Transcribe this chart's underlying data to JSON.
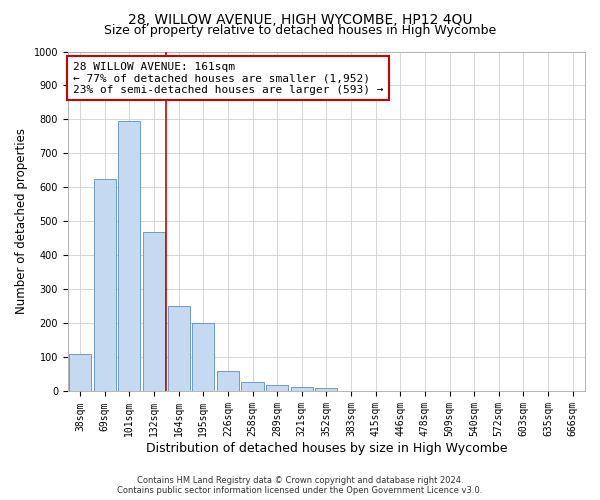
{
  "title": "28, WILLOW AVENUE, HIGH WYCOMBE, HP12 4QU",
  "subtitle": "Size of property relative to detached houses in High Wycombe",
  "xlabel": "Distribution of detached houses by size in High Wycombe",
  "ylabel": "Number of detached properties",
  "footer_line1": "Contains HM Land Registry data © Crown copyright and database right 2024.",
  "footer_line2": "Contains public sector information licensed under the Open Government Licence v3.0.",
  "bar_labels": [
    "38sqm",
    "69sqm",
    "101sqm",
    "132sqm",
    "164sqm",
    "195sqm",
    "226sqm",
    "258sqm",
    "289sqm",
    "321sqm",
    "352sqm",
    "383sqm",
    "415sqm",
    "446sqm",
    "478sqm",
    "509sqm",
    "540sqm",
    "572sqm",
    "603sqm",
    "635sqm",
    "666sqm"
  ],
  "bar_values": [
    110,
    625,
    795,
    470,
    250,
    200,
    60,
    28,
    18,
    13,
    10,
    0,
    0,
    0,
    0,
    0,
    0,
    0,
    0,
    0,
    0
  ],
  "bar_color": "#c5d9f0",
  "bar_edgecolor": "#5a8fc0",
  "vline_color": "#cc0000",
  "annotation_line1": "28 WILLOW AVENUE: 161sqm",
  "annotation_line2": "← 77% of detached houses are smaller (1,952)",
  "annotation_line3": "23% of semi-detached houses are larger (593) →",
  "annotation_box_color": "#ffffff",
  "annotation_box_edgecolor": "#cc0000",
  "ylim": [
    0,
    1000
  ],
  "yticks": [
    0,
    100,
    200,
    300,
    400,
    500,
    600,
    700,
    800,
    900,
    1000
  ],
  "grid_color": "#d0d0d0",
  "background_color": "#ffffff",
  "title_fontsize": 10,
  "subtitle_fontsize": 9,
  "xlabel_fontsize": 9,
  "ylabel_fontsize": 8.5,
  "tick_fontsize": 7,
  "annotation_fontsize": 8,
  "footer_fontsize": 6
}
